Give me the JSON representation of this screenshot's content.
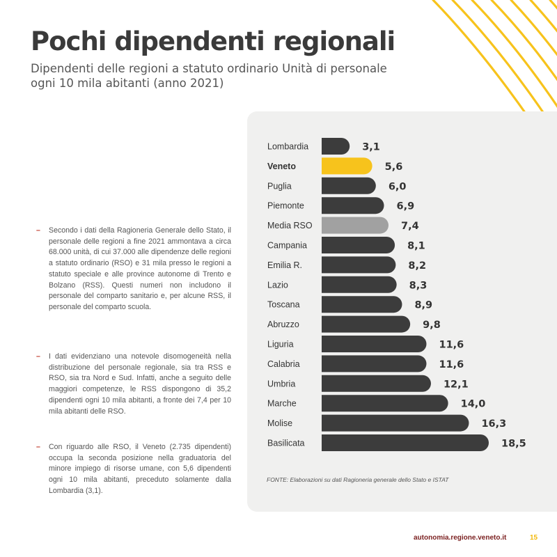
{
  "header": {
    "title": "Pochi dipendenti regionali",
    "subtitle_line1": "Dipendenti delle regioni a statuto ordinario Unità di personale",
    "subtitle_line2": "ogni 10 mila abitanti (anno 2021)"
  },
  "text": {
    "bullets": [
      "Secondo i dati della Ragioneria Generale dello Stato, il personale delle regioni a fine 2021 ammontava a circa 68.000 unità, di cui 37.000 alle dipendenze delle regioni a statuto ordinario (RSO) e 31 mila presso le regioni a statuto speciale e alle province autonome di Trento e Bolzano (RSS). Questi numeri non includono il personale del comparto sanitario e, per alcune RSS, il personale del comparto scuola.",
      "I dati evidenziano una notevole disomogeneità nella distribuzione del personale regionale, sia tra RSS e RSO, sia tra Nord e Sud. Infatti, anche a seguito delle maggiori competenze, le RSS dispongono di 35,2 dipendenti ogni 10 mila abitanti, a fronte dei 7,4 per 10 mila abitanti delle RSO.",
      "Con riguardo alle RSO, il Veneto (2.735 dipendenti) occupa la seconda posizione nella graduatoria del minore impiego di risorse umane, con 5,6 dipendenti ogni 10 mila abitanti, preceduto solamente dalla Lombardia (3,1)."
    ],
    "bullet_marker": "–"
  },
  "chart_data": {
    "type": "bar",
    "orientation": "horizontal",
    "categories": [
      "Lombardia",
      "Veneto",
      "Puglia",
      "Piemonte",
      "Media RSO",
      "Campania",
      "Emilia R.",
      "Lazio",
      "Toscana",
      "Abruzzo",
      "Liguria",
      "Calabria",
      "Umbria",
      "Marche",
      "Molise",
      "Basilicata"
    ],
    "values": [
      3.1,
      5.6,
      6.0,
      6.9,
      7.4,
      8.1,
      8.2,
      8.3,
      8.9,
      9.8,
      11.6,
      11.6,
      12.1,
      14.0,
      16.3,
      18.5
    ],
    "value_labels": [
      "3,1",
      "5,6",
      "6,0",
      "6,9",
      "7,4",
      "8,1",
      "8,2",
      "8,3",
      "8,9",
      "9,8",
      "11,6",
      "11,6",
      "12,1",
      "14,0",
      "16,3",
      "18,5"
    ],
    "highlight": {
      "Veneto": "#f7c31c",
      "Media RSO": "#a1a1a1"
    },
    "bar_color": "#3c3c3c",
    "bold_categories": [
      "Veneto"
    ],
    "xlim": [
      0,
      18.5
    ],
    "grid": false,
    "legend": "none",
    "source": "FONTE: Elaborazioni su dati Ragioneria generale dello Stato e ISTAT"
  },
  "footer": {
    "url": "autonomia.regione.veneto.it",
    "page": "15"
  },
  "colors": {
    "accent_yellow": "#f7c31c",
    "footer_url": "#7a1f1f",
    "dash": "#c0392b"
  }
}
